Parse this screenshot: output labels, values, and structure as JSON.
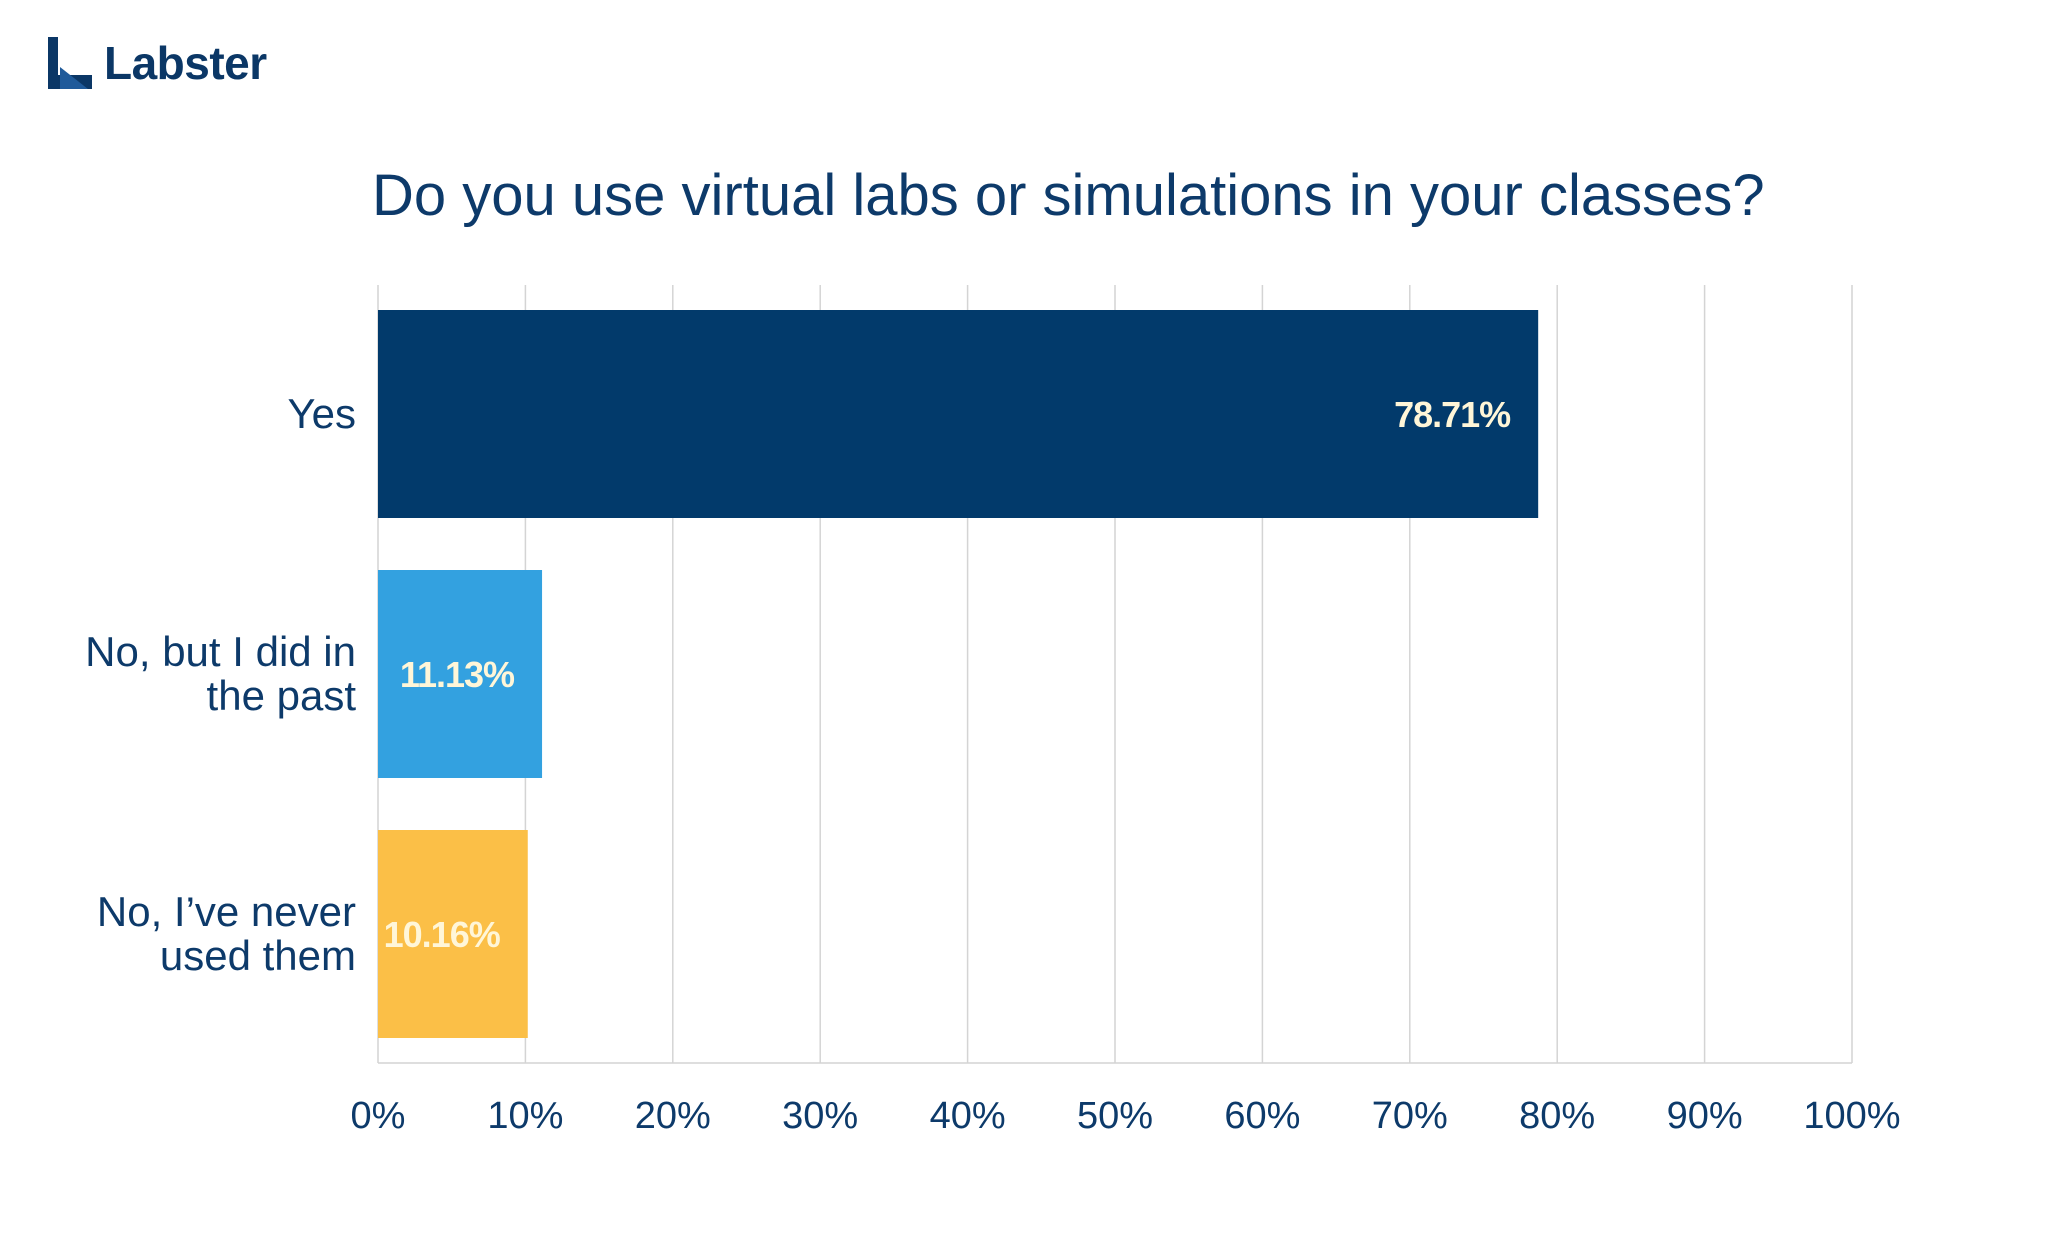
{
  "brand": {
    "name": "Labster",
    "color": "#0b3766"
  },
  "chart_data": {
    "type": "bar",
    "orientation": "horizontal",
    "title": "Do you use virtual labs or simulations in your classes?",
    "categories": [
      {
        "lines": [
          "Yes"
        ]
      },
      {
        "lines": [
          "No, but I did in",
          "the past"
        ]
      },
      {
        "lines": [
          "No, I’ve never",
          "used them"
        ]
      }
    ],
    "values": [
      78.71,
      11.13,
      10.16
    ],
    "value_labels": [
      "78.71%",
      "11.13%",
      "10.16%"
    ],
    "bar_colors": [
      "#023a6b",
      "#33a1e0",
      "#fbbf47"
    ],
    "value_label_color": "#fff6d8",
    "xlim": [
      0,
      100
    ],
    "x_ticks": [
      0,
      10,
      20,
      30,
      40,
      50,
      60,
      70,
      80,
      90,
      100
    ],
    "x_tick_labels": [
      "0%",
      "10%",
      "20%",
      "30%",
      "40%",
      "50%",
      "60%",
      "70%",
      "80%",
      "90%",
      "100%"
    ],
    "grid": true,
    "text_color": "#0d3a6a",
    "grid_color": "#d4d4d4"
  }
}
